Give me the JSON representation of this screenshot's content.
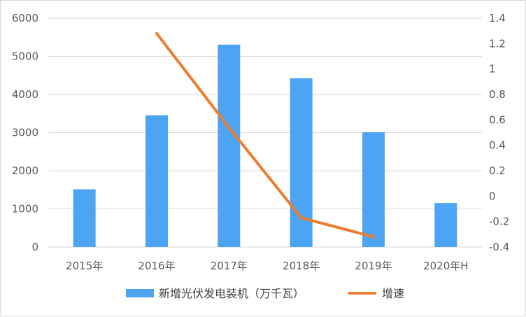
{
  "chart_data": {
    "type": "bar",
    "categories": [
      "2015年",
      "2016年",
      "2017年",
      "2018年",
      "2019年",
      "2020年H"
    ],
    "series": [
      {
        "name": "新增光伏发电装机（万千瓦）",
        "type": "bar",
        "axis": "left",
        "color": "#4da3f4",
        "values": [
          1513,
          3454,
          5306,
          4426,
          3011,
          1152
        ]
      },
      {
        "name": "增速",
        "type": "line",
        "axis": "right",
        "color": "#ed7d31",
        "values": [
          null,
          1.28,
          0.54,
          -0.17,
          -0.32,
          null
        ]
      }
    ],
    "y_left": {
      "ylim": [
        0,
        6000
      ],
      "ticks": [
        "0",
        "1000",
        "2000",
        "3000",
        "4000",
        "5000",
        "6000"
      ]
    },
    "y_right": {
      "ylim": [
        -0.4,
        1.4
      ],
      "ticks": [
        "-0.4",
        "-0.2",
        "0",
        "0.2",
        "0.4",
        "0.6",
        "0.8",
        "1",
        "1.2",
        "1.4"
      ]
    },
    "grid": true,
    "legend": "bottom"
  },
  "colors": {
    "gridline": "#d9d9d9",
    "text": "#595959"
  }
}
